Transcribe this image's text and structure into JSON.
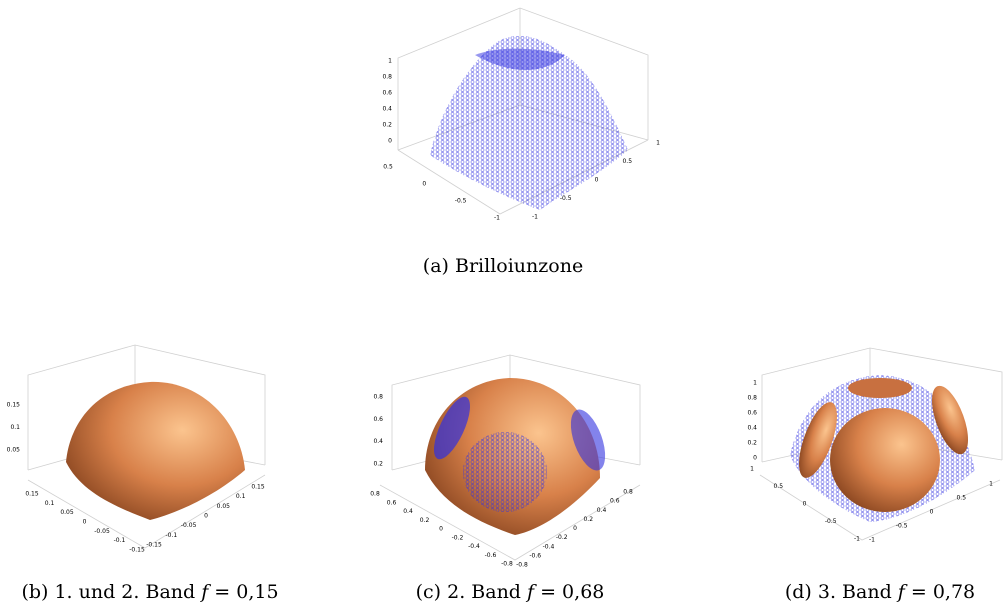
{
  "figures": [
    {
      "caption": "(a) Brilloiunzone",
      "z_ticks": [
        "0",
        "0.2",
        "0.4",
        "0.6",
        "0.8",
        "1"
      ],
      "left_ticks": [
        "0.5",
        "0",
        "-0.5",
        "-1"
      ],
      "right_ticks": [
        "1",
        "0.5",
        "0",
        "-0.5",
        "-1"
      ]
    },
    {
      "caption": "(b) 1. und 2. Band",
      "symbol": "f",
      "equation": "= 0,15",
      "z_ticks": [
        "0.05",
        "0.1",
        "0.15"
      ],
      "left_ticks": [
        "0.15",
        "0.1",
        "0.05",
        "0",
        "-0.05",
        "-0.1",
        "-0.15"
      ],
      "right_ticks": [
        "0.15",
        "0.1",
        "0.05",
        "0",
        "-0.05",
        "-0.1",
        "-0.15"
      ]
    },
    {
      "caption": "(c) 2. Band",
      "symbol": "f",
      "equation": "= 0,68",
      "z_ticks": [
        "0.2",
        "0.4",
        "0.6",
        "0.8"
      ],
      "left_ticks": [
        "0.8",
        "0.6",
        "0.4",
        "0.2",
        "0",
        "-0.2",
        "-0.4",
        "-0.6",
        "-0.8"
      ],
      "right_ticks": [
        "0.8",
        "0.6",
        "0.4",
        "0.2",
        "0",
        "-0.2",
        "-0.4",
        "-0.6",
        "-0.8"
      ]
    },
    {
      "caption": "(d) 3. Band",
      "symbol": "f",
      "equation": "= 0,78",
      "z_ticks": [
        "0",
        "0.2",
        "0.4",
        "0.6",
        "0.8",
        "1"
      ],
      "left_ticks": [
        "1",
        "0.5",
        "0",
        "-0.5",
        "-1"
      ],
      "right_ticks": [
        "1",
        "0.5",
        "0",
        "-0.5",
        "-1"
      ]
    }
  ]
}
